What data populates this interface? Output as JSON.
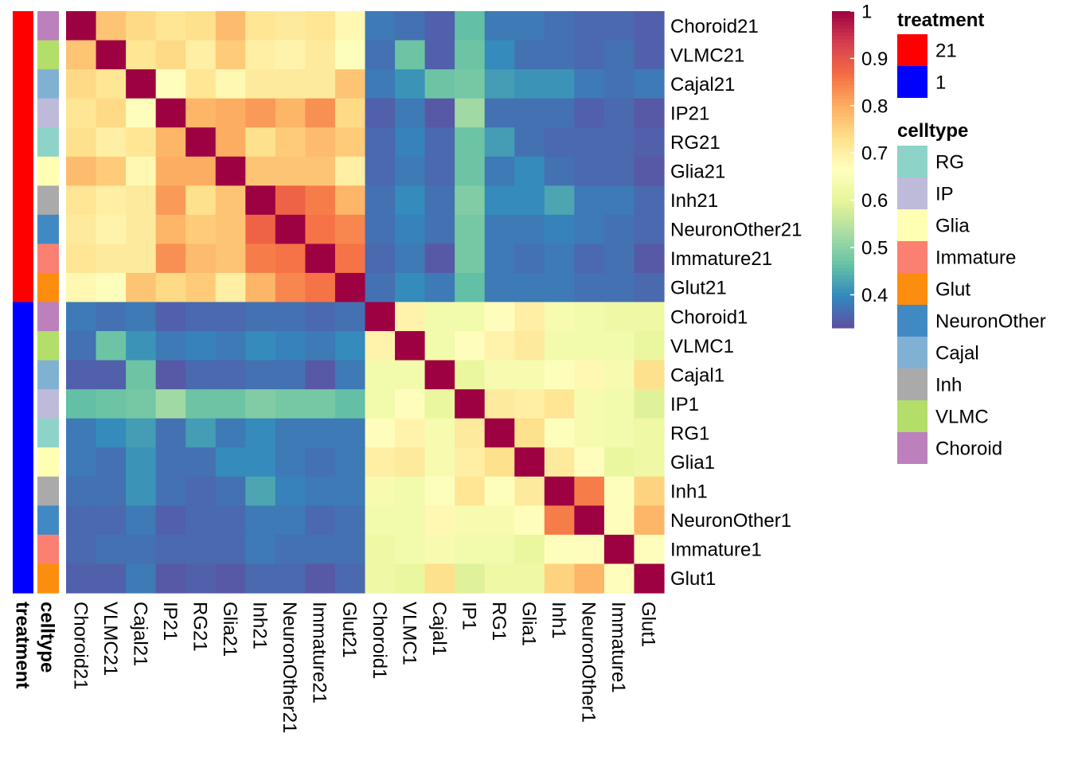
{
  "chart_data": {
    "type": "heatmap",
    "rows": [
      "Choroid21",
      "VLMC21",
      "Cajal21",
      "IP21",
      "RG21",
      "Glia21",
      "Inh21",
      "NeuronOther21",
      "Immature21",
      "Glut21",
      "Choroid1",
      "VLMC1",
      "Cajal1",
      "IP1",
      "RG1",
      "Glia1",
      "Inh1",
      "NeuronOther1",
      "Immature1",
      "Glut1"
    ],
    "columns": [
      "Choroid21",
      "VLMC21",
      "Cajal21",
      "IP21",
      "RG21",
      "Glia21",
      "Inh21",
      "NeuronOther21",
      "Immature21",
      "Glut21",
      "Choroid1",
      "VLMC1",
      "Cajal1",
      "IP1",
      "RG1",
      "Glia1",
      "Inh1",
      "NeuronOther1",
      "Immature1",
      "Glut1"
    ],
    "values": [
      [
        1.0,
        0.77,
        0.74,
        0.72,
        0.73,
        0.78,
        0.72,
        0.71,
        0.72,
        0.68,
        0.38,
        0.37,
        0.35,
        0.46,
        0.38,
        0.38,
        0.37,
        0.36,
        0.36,
        0.35
      ],
      [
        0.77,
        1.0,
        0.72,
        0.74,
        0.7,
        0.76,
        0.7,
        0.69,
        0.71,
        0.66,
        0.37,
        0.47,
        0.35,
        0.47,
        0.4,
        0.37,
        0.37,
        0.36,
        0.37,
        0.35
      ],
      [
        0.74,
        0.72,
        1.0,
        0.67,
        0.72,
        0.68,
        0.71,
        0.71,
        0.71,
        0.77,
        0.38,
        0.41,
        0.47,
        0.48,
        0.42,
        0.41,
        0.41,
        0.38,
        0.37,
        0.38
      ],
      [
        0.72,
        0.74,
        0.67,
        1.0,
        0.79,
        0.8,
        0.82,
        0.79,
        0.83,
        0.74,
        0.35,
        0.38,
        0.34,
        0.52,
        0.37,
        0.37,
        0.37,
        0.35,
        0.36,
        0.34
      ],
      [
        0.73,
        0.7,
        0.72,
        0.79,
        1.0,
        0.8,
        0.73,
        0.76,
        0.78,
        0.76,
        0.36,
        0.39,
        0.36,
        0.47,
        0.42,
        0.37,
        0.36,
        0.36,
        0.36,
        0.35
      ],
      [
        0.78,
        0.76,
        0.68,
        0.8,
        0.8,
        1.0,
        0.77,
        0.77,
        0.77,
        0.7,
        0.36,
        0.38,
        0.36,
        0.47,
        0.38,
        0.4,
        0.37,
        0.36,
        0.36,
        0.34
      ],
      [
        0.72,
        0.7,
        0.71,
        0.82,
        0.73,
        0.77,
        1.0,
        0.88,
        0.85,
        0.79,
        0.37,
        0.4,
        0.37,
        0.49,
        0.4,
        0.4,
        0.43,
        0.38,
        0.38,
        0.36
      ],
      [
        0.71,
        0.69,
        0.71,
        0.79,
        0.76,
        0.77,
        0.88,
        1.0,
        0.86,
        0.84,
        0.37,
        0.39,
        0.37,
        0.48,
        0.38,
        0.38,
        0.39,
        0.38,
        0.37,
        0.36
      ],
      [
        0.72,
        0.71,
        0.71,
        0.83,
        0.78,
        0.77,
        0.85,
        0.86,
        1.0,
        0.86,
        0.36,
        0.38,
        0.34,
        0.48,
        0.38,
        0.37,
        0.38,
        0.36,
        0.37,
        0.34
      ],
      [
        0.68,
        0.66,
        0.77,
        0.74,
        0.76,
        0.7,
        0.79,
        0.84,
        0.86,
        1.0,
        0.37,
        0.4,
        0.38,
        0.46,
        0.38,
        0.38,
        0.38,
        0.37,
        0.37,
        0.36
      ],
      [
        0.38,
        0.37,
        0.38,
        0.35,
        0.36,
        0.36,
        0.37,
        0.37,
        0.36,
        0.37,
        1.0,
        0.69,
        0.63,
        0.63,
        0.67,
        0.7,
        0.64,
        0.63,
        0.62,
        0.62
      ],
      [
        0.37,
        0.47,
        0.41,
        0.38,
        0.39,
        0.38,
        0.4,
        0.39,
        0.38,
        0.4,
        0.69,
        1.0,
        0.63,
        0.67,
        0.69,
        0.71,
        0.63,
        0.63,
        0.63,
        0.61
      ],
      [
        0.35,
        0.35,
        0.47,
        0.34,
        0.36,
        0.36,
        0.37,
        0.37,
        0.34,
        0.38,
        0.63,
        0.63,
        1.0,
        0.61,
        0.64,
        0.64,
        0.66,
        0.68,
        0.64,
        0.73
      ],
      [
        0.46,
        0.47,
        0.48,
        0.52,
        0.47,
        0.47,
        0.49,
        0.48,
        0.48,
        0.46,
        0.63,
        0.67,
        0.61,
        1.0,
        0.71,
        0.7,
        0.72,
        0.64,
        0.63,
        0.59
      ],
      [
        0.38,
        0.4,
        0.42,
        0.37,
        0.42,
        0.38,
        0.4,
        0.38,
        0.38,
        0.38,
        0.67,
        0.69,
        0.64,
        0.71,
        1.0,
        0.73,
        0.66,
        0.64,
        0.63,
        0.62
      ],
      [
        0.38,
        0.37,
        0.41,
        0.37,
        0.37,
        0.4,
        0.4,
        0.38,
        0.37,
        0.38,
        0.7,
        0.71,
        0.64,
        0.7,
        0.73,
        1.0,
        0.71,
        0.67,
        0.61,
        0.62
      ],
      [
        0.37,
        0.37,
        0.41,
        0.37,
        0.36,
        0.37,
        0.43,
        0.39,
        0.38,
        0.38,
        0.64,
        0.63,
        0.66,
        0.72,
        0.66,
        0.71,
        1.0,
        0.85,
        0.66,
        0.75
      ],
      [
        0.36,
        0.36,
        0.38,
        0.35,
        0.36,
        0.36,
        0.38,
        0.38,
        0.36,
        0.37,
        0.63,
        0.63,
        0.68,
        0.64,
        0.64,
        0.67,
        0.85,
        1.0,
        0.67,
        0.79
      ],
      [
        0.36,
        0.37,
        0.37,
        0.36,
        0.36,
        0.36,
        0.38,
        0.37,
        0.37,
        0.37,
        0.62,
        0.63,
        0.64,
        0.63,
        0.63,
        0.61,
        0.66,
        0.67,
        1.0,
        0.67
      ],
      [
        0.35,
        0.35,
        0.38,
        0.34,
        0.35,
        0.34,
        0.36,
        0.36,
        0.34,
        0.36,
        0.62,
        0.61,
        0.73,
        0.59,
        0.62,
        0.62,
        0.75,
        0.79,
        0.67,
        1.0
      ]
    ],
    "annotations": {
      "treatment": [
        "21",
        "21",
        "21",
        "21",
        "21",
        "21",
        "21",
        "21",
        "21",
        "21",
        "1",
        "1",
        "1",
        "1",
        "1",
        "1",
        "1",
        "1",
        "1",
        "1"
      ],
      "celltype": [
        "Choroid",
        "VLMC",
        "Cajal",
        "IP",
        "RG",
        "Glia",
        "Inh",
        "NeuronOther",
        "Immature",
        "Glut",
        "Choroid",
        "VLMC",
        "Cajal",
        "IP",
        "RG",
        "Glia",
        "Inh",
        "NeuronOther",
        "Immature",
        "Glut"
      ]
    },
    "annotation_titles": [
      "treatment",
      "celltype"
    ],
    "colorbar": {
      "ticks": [
        "1",
        "0.9",
        "0.8",
        "0.7",
        "0.6",
        "0.5",
        "0.4"
      ],
      "tick_values": [
        1.0,
        0.9,
        0.8,
        0.7,
        0.6,
        0.5,
        0.4
      ],
      "range": [
        0.33,
        1.0
      ],
      "palette": [
        "#5E4FA2",
        "#3288BD",
        "#66C2A5",
        "#ABDDA4",
        "#E6F598",
        "#FFFFBF",
        "#FEE08B",
        "#FDAE61",
        "#F46D43",
        "#D53E4F",
        "#9E0142"
      ]
    },
    "legends": {
      "treatment": {
        "title": "treatment",
        "items": [
          {
            "label": "21",
            "color": "#FF0000"
          },
          {
            "label": "1",
            "color": "#0000FF"
          }
        ]
      },
      "celltype": {
        "title": "celltype",
        "items": [
          {
            "label": "RG",
            "color": "#8DD3C7"
          },
          {
            "label": "IP",
            "color": "#BEBADA"
          },
          {
            "label": "Glia",
            "color": "#FFFFB3"
          },
          {
            "label": "Immature",
            "color": "#FB8072"
          },
          {
            "label": "Glut",
            "color": "#FD8D0F"
          },
          {
            "label": "NeuronOther",
            "color": "#4189C3"
          },
          {
            "label": "Cajal",
            "color": "#80B1D3"
          },
          {
            "label": "Inh",
            "color": "#AAAAAA"
          },
          {
            "label": "VLMC",
            "color": "#B3DE69"
          },
          {
            "label": "Choroid",
            "color": "#BC80BD"
          }
        ]
      }
    },
    "legend_position": "right",
    "title": "",
    "xlabel": "",
    "ylabel": ""
  }
}
